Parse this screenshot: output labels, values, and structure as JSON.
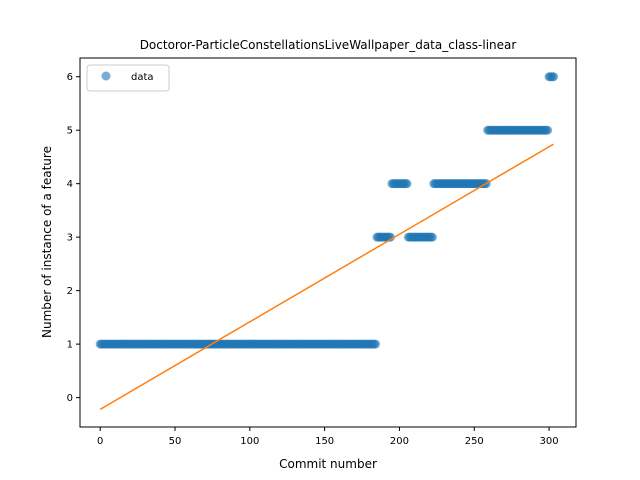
{
  "chart_data": {
    "type": "scatter",
    "title": "Doctoror-ParticleConstellationsLiveWallpaper_data_class-linear",
    "xlabel": "Commit number",
    "ylabel": "Number of instance of a feature",
    "xlim": [
      -13.5,
      318
    ],
    "ylim": [
      -0.55,
      6.35
    ],
    "xticks": [
      0,
      50,
      100,
      150,
      200,
      250,
      300
    ],
    "yticks": [
      0,
      1,
      2,
      3,
      4,
      5,
      6
    ],
    "legend": {
      "position": "top-left",
      "entries": [
        "data"
      ]
    },
    "grid": false,
    "series": [
      {
        "name": "data",
        "kind": "scatter",
        "color": "#1f77b4",
        "segments": [
          {
            "x_start": 0,
            "x_end": 184,
            "y": 1
          },
          {
            "x_start": 185,
            "x_end": 194,
            "y": 3
          },
          {
            "x_start": 195,
            "x_end": 205,
            "y": 4
          },
          {
            "x_start": 206,
            "x_end": 222,
            "y": 3
          },
          {
            "x_start": 223,
            "x_end": 258,
            "y": 4
          },
          {
            "x_start": 259,
            "x_end": 299,
            "y": 5
          },
          {
            "x_start": 300,
            "x_end": 303,
            "y": 6
          }
        ]
      },
      {
        "name": "",
        "kind": "line",
        "color": "#ff7f0e",
        "points": [
          [
            0,
            -0.22
          ],
          [
            303,
            4.74
          ]
        ]
      }
    ]
  }
}
